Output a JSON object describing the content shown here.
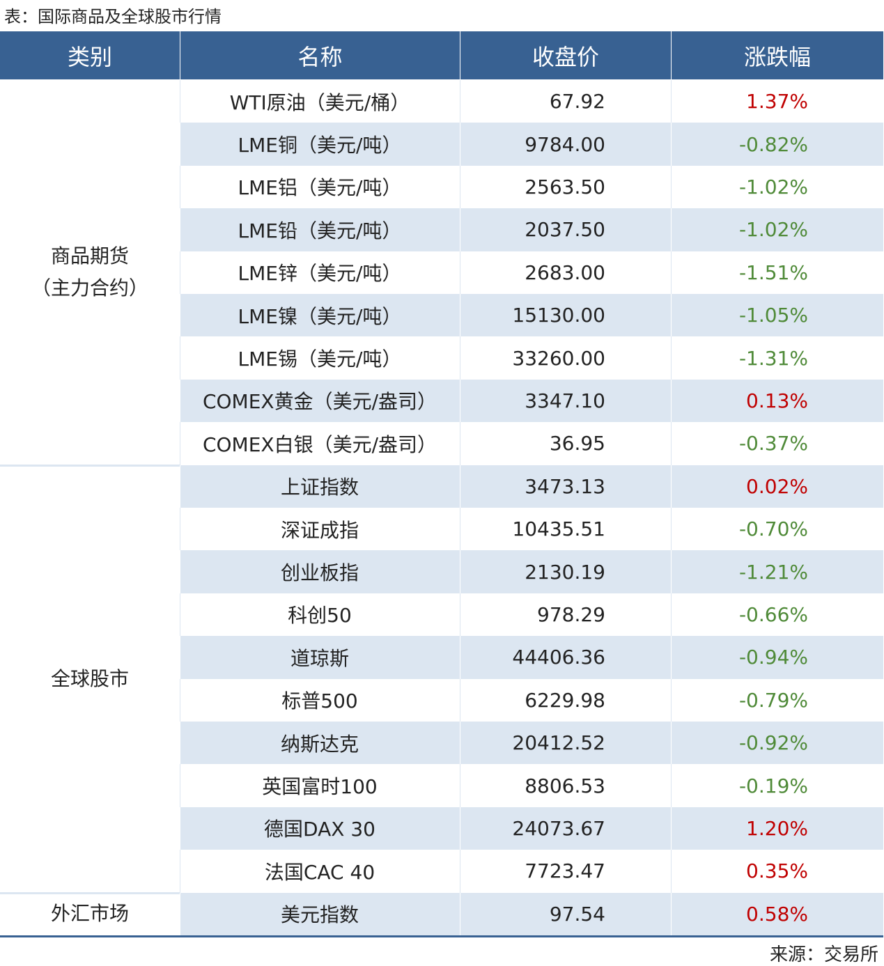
{
  "header": {
    "title": "表：国际商品及全球股市行情"
  },
  "table": {
    "columns": [
      "类别",
      "名称",
      "收盘价",
      "涨跌幅"
    ],
    "colors": {
      "header": "#386192",
      "stripe": "#dce6f1",
      "up": "#c00000",
      "down": "#4f8a38"
    },
    "groups": [
      {
        "category": [
          "商品期货",
          "（主力合约）"
        ],
        "rows": [
          [
            "WTI原油（美元/桶）",
            "67.92",
            "1.37%"
          ],
          [
            "LME铜（美元/吨）",
            "9784.00",
            "-0.82%"
          ],
          [
            "LME铝（美元/吨）",
            "2563.50",
            "-1.02%"
          ],
          [
            "LME铅（美元/吨）",
            "2037.50",
            "-1.02%"
          ],
          [
            "LME锌（美元/吨）",
            "2683.00",
            "-1.51%"
          ],
          [
            "LME镍（美元/吨）",
            "15130.00",
            "-1.05%"
          ],
          [
            "LME锡（美元/吨）",
            "33260.00",
            "-1.31%"
          ],
          [
            "COMEX黄金（美元/盎司）",
            "3347.10",
            "0.13%"
          ],
          [
            "COMEX白银（美元/盎司）",
            "36.95",
            "-0.37%"
          ]
        ]
      },
      {
        "category": [
          "全球股市"
        ],
        "rows": [
          [
            "上证指数",
            "3473.13",
            "0.02%"
          ],
          [
            "深证成指",
            "10435.51",
            "-0.70%"
          ],
          [
            "创业板指",
            "2130.19",
            "-1.21%"
          ],
          [
            "科创50",
            "978.29",
            "-0.66%"
          ],
          [
            "道琼斯",
            "44406.36",
            "-0.94%"
          ],
          [
            "标普500",
            "6229.98",
            "-0.79%"
          ],
          [
            "纳斯达克",
            "20412.52",
            "-0.92%"
          ],
          [
            "英国富时100",
            "8806.53",
            "-0.19%"
          ],
          [
            "德国DAX 30",
            "24073.67",
            "1.20%"
          ],
          [
            "法国CAC 40",
            "7723.47",
            "0.35%"
          ]
        ]
      },
      {
        "category": [
          "外汇市场"
        ],
        "rows": [
          [
            "美元指数",
            "97.54",
            "0.58%"
          ]
        ]
      }
    ]
  },
  "footer": {
    "source": "来源：交易所"
  }
}
